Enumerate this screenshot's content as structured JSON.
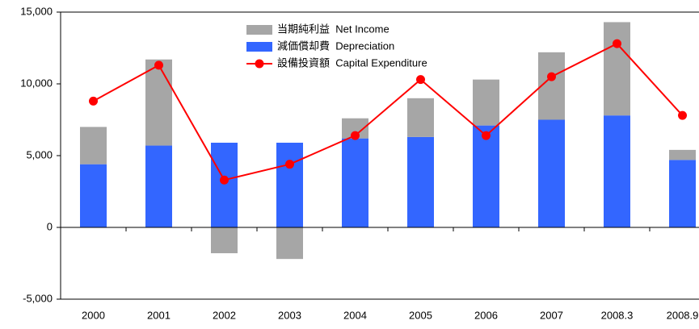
{
  "chart_data": {
    "type": "bar-line",
    "categories": [
      "2000",
      "2001",
      "2002",
      "2003",
      "2004",
      "2005",
      "2006",
      "2007",
      "2008.3",
      "2008.9"
    ],
    "series": [
      {
        "name": "当期純利益  Net Income",
        "color": "#a6a6a6",
        "kind": "bar",
        "values": [
          2600,
          6000,
          -1800,
          -2200,
          1400,
          2700,
          3200,
          4700,
          6500,
          700
        ]
      },
      {
        "name": "減価償却費  Depreciation",
        "color": "#3366ff",
        "kind": "bar",
        "values": [
          4400,
          5700,
          5900,
          5900,
          6200,
          6300,
          7100,
          7500,
          7800,
          4700
        ]
      },
      {
        "name": "設備投資額  Capital Expenditure",
        "color": "#ff0000",
        "kind": "line",
        "values": [
          8800,
          11300,
          3300,
          4400,
          6400,
          10300,
          6400,
          10500,
          12800,
          7800
        ]
      }
    ],
    "ylim": [
      -5000,
      15000
    ],
    "yticks": [
      {
        "value": -5000,
        "label": "-5,000"
      },
      0,
      {
        "value": 5000,
        "label": "5,000"
      },
      {
        "value": 10000,
        "label": "10,000"
      },
      {
        "value": 15000,
        "label": "15,000"
      }
    ],
    "grid": false
  }
}
